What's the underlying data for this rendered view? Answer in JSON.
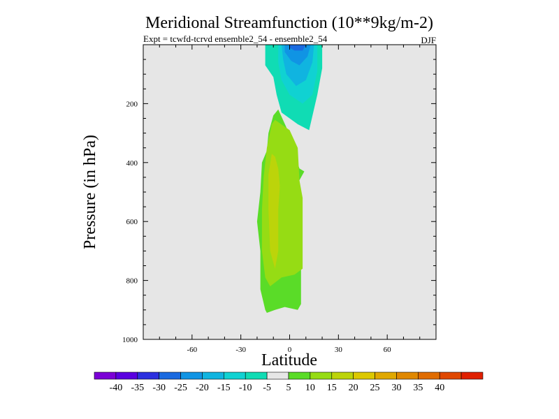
{
  "chart_data": {
    "type": "contour",
    "title": "Meridional Streamfunction (10**9kg/m-2)",
    "subtitle_left": "Expt = tcwfd-tcrvd  ensemble2_54 - ensemble2_54",
    "subtitle_right": "DJF",
    "xlabel": "Latitude",
    "ylabel": "Pressure (in hPa)",
    "xlim": [
      -90,
      90
    ],
    "ylim": [
      1000,
      0
    ],
    "y_inverted": true,
    "x_ticks": [
      -60,
      -30,
      0,
      30,
      60
    ],
    "y_ticks": [
      200,
      400,
      600,
      800,
      1000
    ],
    "background_color": "#e6e6e6",
    "contour_levels": [
      -40,
      -35,
      -30,
      -25,
      -20,
      -15,
      -10,
      -5,
      5,
      10,
      15,
      20,
      25,
      30,
      35,
      40
    ],
    "colorbar_colors": [
      "#7b00d6",
      "#5a00e0",
      "#2c30df",
      "#1a6ae0",
      "#1094e4",
      "#10b4e0",
      "#10d2d2",
      "#10dcb4",
      "#e6e6e6",
      "#5adc28",
      "#96dc14",
      "#bcd40a",
      "#dcc800",
      "#e0a800",
      "#e08800",
      "#e06c00",
      "#e04800",
      "#e02000"
    ],
    "regions": [
      {
        "level": -10,
        "color": "#10dcb4",
        "points": [
          [
            -10,
            0
          ],
          [
            20,
            0
          ],
          [
            20,
            80
          ],
          [
            17,
            170
          ],
          [
            12,
            290
          ],
          [
            5,
            270
          ],
          [
            -5,
            230
          ],
          [
            -8,
            170
          ],
          [
            -10,
            110
          ],
          [
            -15,
            70
          ],
          [
            -15,
            0
          ]
        ]
      },
      {
        "level": -15,
        "color": "#10d2d2",
        "points": [
          [
            -7,
            0
          ],
          [
            17,
            0
          ],
          [
            17,
            90
          ],
          [
            14,
            170
          ],
          [
            8,
            200
          ],
          [
            0,
            170
          ],
          [
            -5,
            120
          ],
          [
            -7,
            60
          ]
        ]
      },
      {
        "level": -20,
        "color": "#10b4e0",
        "points": [
          [
            -5,
            0
          ],
          [
            15,
            0
          ],
          [
            14,
            60
          ],
          [
            10,
            120
          ],
          [
            4,
            140
          ],
          [
            -2,
            100
          ],
          [
            -4,
            50
          ]
        ]
      },
      {
        "level": -25,
        "color": "#1094e4",
        "points": [
          [
            -3,
            0
          ],
          [
            13,
            0
          ],
          [
            11,
            40
          ],
          [
            6,
            70
          ],
          [
            1,
            55
          ],
          [
            -3,
            25
          ]
        ]
      },
      {
        "level": -30,
        "color": "#1a6ae0",
        "points": [
          [
            0,
            0
          ],
          [
            10,
            0
          ],
          [
            8,
            20
          ],
          [
            3,
            20
          ],
          [
            0,
            10
          ]
        ]
      },
      {
        "level": 5,
        "color": "#5adc28",
        "points": [
          [
            -7,
            220
          ],
          [
            -2,
            280
          ],
          [
            6,
            420
          ],
          [
            9,
            430
          ],
          [
            6,
            460
          ],
          [
            7,
            700
          ],
          [
            7,
            880
          ],
          [
            5,
            900
          ],
          [
            -3,
            890
          ],
          [
            -9,
            900
          ],
          [
            -14,
            910
          ],
          [
            -15,
            900
          ],
          [
            -18,
            830
          ],
          [
            -18,
            700
          ],
          [
            -20,
            600
          ],
          [
            -18,
            500
          ],
          [
            -17,
            400
          ],
          [
            -14,
            360
          ],
          [
            -13,
            300
          ],
          [
            -10,
            240
          ]
        ]
      },
      {
        "level": 10,
        "color": "#96dc14",
        "points": [
          [
            -9,
            255
          ],
          [
            0,
            290
          ],
          [
            5,
            350
          ],
          [
            6,
            460
          ],
          [
            8,
            520
          ],
          [
            8,
            760
          ],
          [
            3,
            780
          ],
          [
            -5,
            790
          ],
          [
            -12,
            820
          ],
          [
            -15,
            790
          ],
          [
            -17,
            700
          ],
          [
            -17,
            560
          ],
          [
            -16,
            450
          ],
          [
            -14,
            350
          ],
          [
            -11,
            270
          ]
        ]
      },
      {
        "level": 15,
        "color": "#bcd40a",
        "points": [
          [
            -11,
            370
          ],
          [
            -9,
            380
          ],
          [
            -7,
            420
          ],
          [
            -6,
            480
          ],
          [
            -7,
            560
          ],
          [
            -7,
            700
          ],
          [
            -9,
            760
          ],
          [
            -12,
            700
          ],
          [
            -13,
            560
          ],
          [
            -13,
            440
          ]
        ]
      }
    ]
  }
}
